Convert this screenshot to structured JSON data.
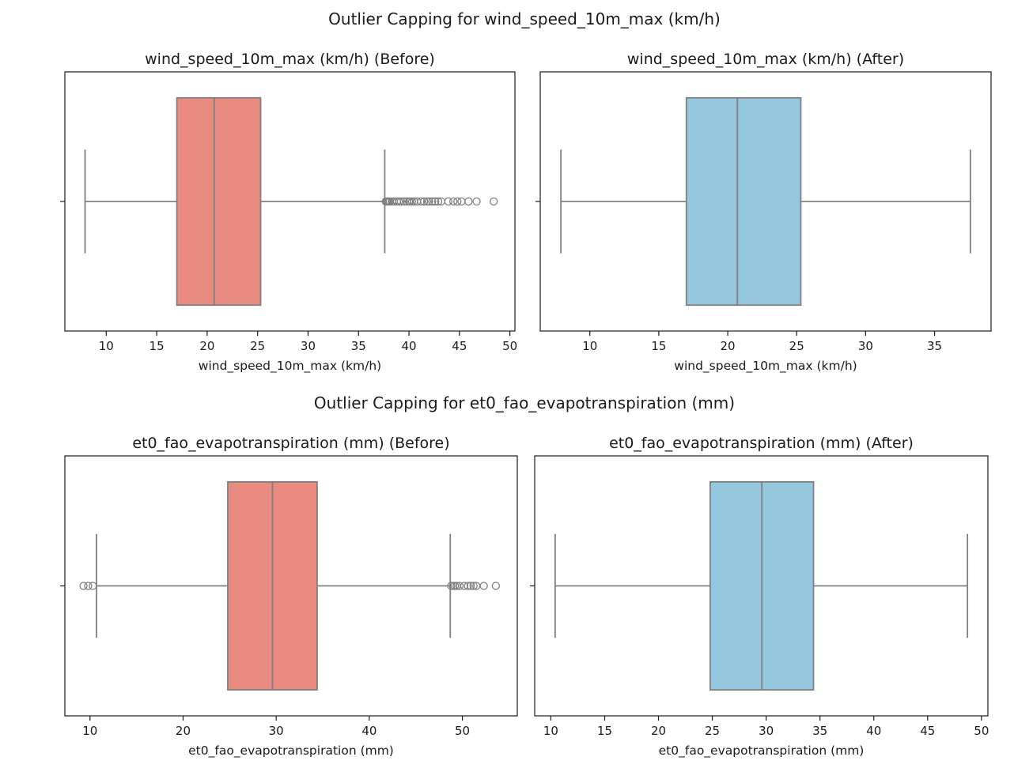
{
  "suptitles": [
    "Outlier Capping for wind_speed_10m_max (km/h)",
    "Outlier Capping for et0_fao_evapotranspiration (mm)"
  ],
  "colors": {
    "before_box": "#e98b80",
    "after_box": "#95c8de",
    "lines": "#808080",
    "frame": "#1a1a1a"
  },
  "chart_data": [
    {
      "type": "box",
      "title": "wind_speed_10m_max (km/h) (Before)",
      "xlabel": "wind_speed_10m_max (km/h)",
      "xlim": [
        5.9,
        50.5
      ],
      "xticks": [
        10,
        15,
        20,
        25,
        30,
        35,
        40,
        45,
        50
      ],
      "box": {
        "whisker_low": 7.9,
        "q1": 17.0,
        "median": 20.7,
        "q3": 25.3,
        "whisker_high": 37.6
      },
      "outliers": [
        37.7,
        37.8,
        37.9,
        38.0,
        38.1,
        38.3,
        38.5,
        38.8,
        39.0,
        39.2,
        39.5,
        39.8,
        40.0,
        40.1,
        40.3,
        40.5,
        40.8,
        41.2,
        41.5,
        41.8,
        42.0,
        42.3,
        42.6,
        42.9,
        43.2,
        43.9,
        44.4,
        44.8,
        45.2,
        45.9,
        46.7,
        48.4
      ],
      "box_color": "#e98b80"
    },
    {
      "type": "box",
      "title": "wind_speed_10m_max (km/h) (After)",
      "xlabel": "wind_speed_10m_max (km/h)",
      "xlim": [
        6.4,
        39.1
      ],
      "xticks": [
        10,
        15,
        20,
        25,
        30,
        35
      ],
      "box": {
        "whisker_low": 7.9,
        "q1": 17.0,
        "median": 20.7,
        "q3": 25.3,
        "whisker_high": 37.6
      },
      "outliers": [],
      "box_color": "#95c8de"
    },
    {
      "type": "box",
      "title": "et0_fao_evapotranspiration (mm) (Before)",
      "xlabel": "et0_fao_evapotranspiration (mm)",
      "xlim": [
        7.3,
        55.9
      ],
      "xticks": [
        10,
        20,
        30,
        40,
        50
      ],
      "box": {
        "whisker_low": 10.7,
        "q1": 24.8,
        "median": 29.6,
        "q3": 34.4,
        "whisker_high": 48.7
      },
      "outliers": [
        9.3,
        9.8,
        10.3,
        48.8,
        49.0,
        49.2,
        49.4,
        49.7,
        50.2,
        50.6,
        50.9,
        51.2,
        51.5,
        52.3,
        53.6
      ],
      "box_color": "#e98b80"
    },
    {
      "type": "box",
      "title": "et0_fao_evapotranspiration (mm) (After)",
      "xlabel": "et0_fao_evapotranspiration (mm)",
      "xlim": [
        8.5,
        50.6
      ],
      "xticks": [
        10,
        15,
        20,
        25,
        30,
        35,
        40,
        45,
        50
      ],
      "box": {
        "whisker_low": 10.4,
        "q1": 24.8,
        "median": 29.6,
        "q3": 34.4,
        "whisker_high": 48.7
      },
      "outliers": [],
      "box_color": "#95c8de"
    }
  ]
}
